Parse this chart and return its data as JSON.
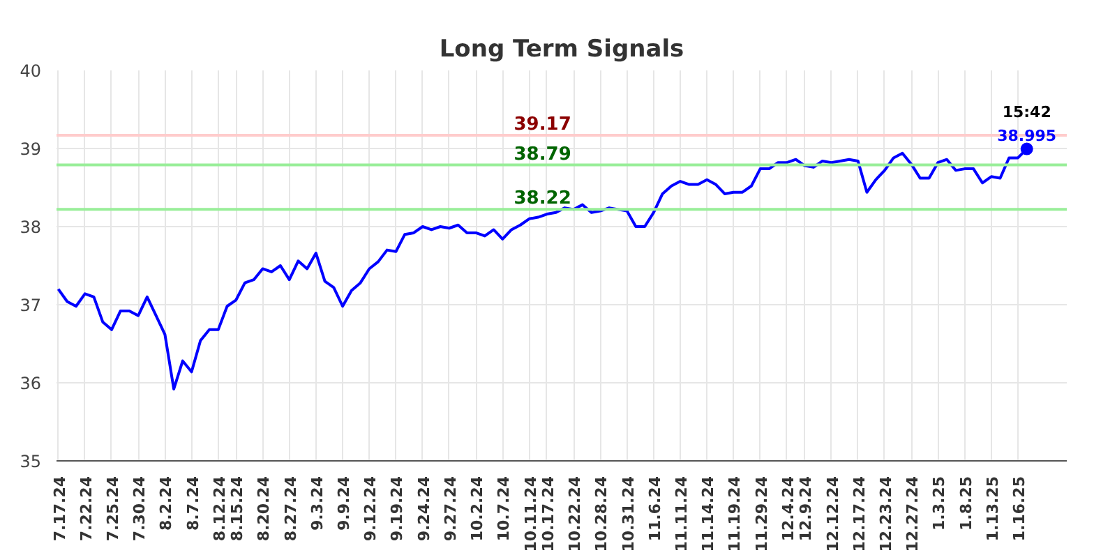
{
  "chart_data": {
    "type": "line",
    "title": "Long Term Signals",
    "categories": [
      "7.17.24",
      null,
      null,
      "7.22.24",
      null,
      null,
      "7.25.24",
      null,
      null,
      "7.30.24",
      null,
      null,
      "8.2.24",
      null,
      null,
      "8.7.24",
      null,
      null,
      "8.12.24",
      null,
      "8.15.24",
      null,
      null,
      "8.20.24",
      null,
      null,
      "8.27.24",
      null,
      null,
      "9.3.24",
      null,
      null,
      "9.9.24",
      null,
      null,
      "9.12.24",
      null,
      null,
      "9.19.24",
      null,
      null,
      "9.24.24",
      null,
      null,
      "9.27.24",
      null,
      null,
      "10.2.24",
      null,
      null,
      "10.7.24",
      null,
      null,
      "10.11.24",
      null,
      "10.17.24",
      null,
      null,
      "10.22.24",
      null,
      null,
      "10.28.24",
      null,
      null,
      "10.31.24",
      null,
      null,
      "11.6.24",
      null,
      null,
      "11.11.24",
      null,
      null,
      "11.14.24",
      null,
      null,
      "11.19.24",
      null,
      null,
      "11.29.24",
      null,
      null,
      "12.4.24",
      null,
      "12.9.24",
      null,
      null,
      "12.12.24",
      null,
      null,
      "12.17.24",
      null,
      null,
      "12.23.24",
      null,
      null,
      "12.27.24",
      null,
      null,
      "1.3.25",
      null,
      null,
      "1.8.25",
      null,
      null,
      "1.13.25",
      null,
      null,
      "1.16.25",
      null
    ],
    "series": [
      {
        "color": "#0000ff",
        "values": [
          37.2,
          37.04,
          36.98,
          37.14,
          37.1,
          36.78,
          36.68,
          36.92,
          36.92,
          36.86,
          37.1,
          36.86,
          36.62,
          35.92,
          36.28,
          36.14,
          36.54,
          36.68,
          36.68,
          36.98,
          37.06,
          37.28,
          37.32,
          37.46,
          37.42,
          37.5,
          37.32,
          37.56,
          37.46,
          37.66,
          37.3,
          37.22,
          36.98,
          37.18,
          37.28,
          37.46,
          37.55,
          37.7,
          37.68,
          37.9,
          37.92,
          38.0,
          37.96,
          38.0,
          37.98,
          38.02,
          37.92,
          37.92,
          37.88,
          37.96,
          37.84,
          37.96,
          38.02,
          38.1,
          38.12,
          38.16,
          38.18,
          38.24,
          38.22,
          38.28,
          38.18,
          38.2,
          38.24,
          38.22,
          38.2,
          38.0,
          38.0,
          38.18,
          38.42,
          38.52,
          38.58,
          38.54,
          38.54,
          38.6,
          38.54,
          38.42,
          38.44,
          38.44,
          38.52,
          38.74,
          38.74,
          38.82,
          38.82,
          38.86,
          38.78,
          38.76,
          38.84,
          38.82,
          38.84,
          38.86,
          38.84,
          38.44,
          38.6,
          38.72,
          38.88,
          38.94,
          38.8,
          38.62,
          38.62,
          38.82,
          38.86,
          38.72,
          38.74,
          38.74,
          38.56,
          38.64,
          38.62,
          38.88,
          38.88,
          38.995
        ]
      }
    ],
    "ylim": [
      35,
      40
    ],
    "yticks": [
      35,
      36,
      37,
      38,
      39,
      40
    ],
    "grid": true,
    "ref_lines": [
      {
        "axis": "y",
        "value": 39.17,
        "label": "39.17",
        "color": "#ffcccc"
      },
      {
        "axis": "y",
        "value": 38.79,
        "label": "38.79",
        "color": "#99ee99"
      },
      {
        "axis": "y",
        "value": 38.22,
        "label": "38.22",
        "color": "#99ee99"
      }
    ],
    "annotations": [
      {
        "text": "15:42",
        "y": 38.995
      },
      {
        "text": "38.995",
        "y": 38.995
      }
    ]
  }
}
